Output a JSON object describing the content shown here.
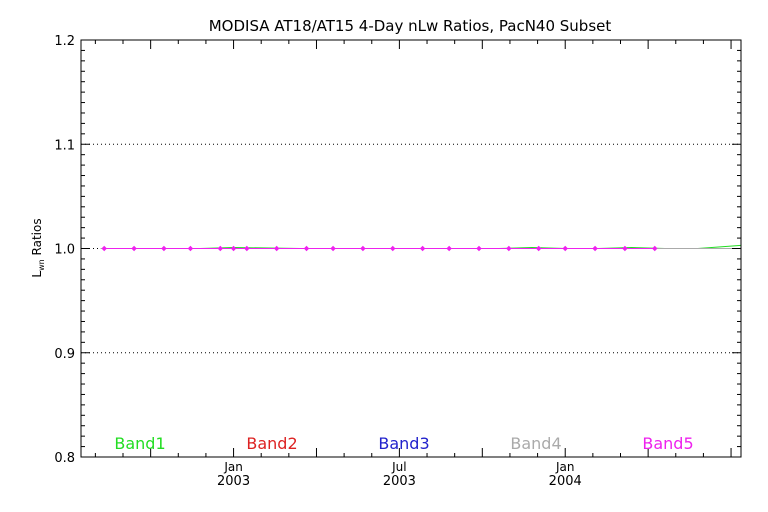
{
  "chart_data": {
    "type": "line",
    "title": "MODISA AT18/AT15 4-Day nLw Ratios, PacN40 Subset",
    "ylabel_main": "L",
    "ylabel_sub": "wn",
    "ylabel_rest": " Ratios",
    "ylim": [
      0.8,
      1.2
    ],
    "yticks": [
      {
        "value": 0.8,
        "label": "0.8"
      },
      {
        "value": 0.9,
        "label": "0.9"
      },
      {
        "value": 1.0,
        "label": "1.0"
      },
      {
        "value": 1.1,
        "label": "1.1"
      },
      {
        "value": 1.2,
        "label": "1.2"
      }
    ],
    "xlim": [
      2002.54,
      2004.53
    ],
    "xticks": [
      {
        "value": 2003.0,
        "month": "Jan",
        "year": "2003"
      },
      {
        "value": 2003.5,
        "month": "Jul",
        "year": "2003"
      },
      {
        "value": 2004.0,
        "month": "Jan",
        "year": "2004"
      }
    ],
    "grid_y": [
      0.9,
      1.0,
      1.1
    ],
    "legend_placement": "bottom",
    "series": [
      {
        "name": "Band1",
        "color": "#22dd22",
        "x": [
          2002.6,
          2002.9,
          2003.0,
          2003.2,
          2003.5,
          2003.8,
          2003.9,
          2004.0,
          2004.1,
          2004.2,
          2004.3,
          2004.4,
          2004.53
        ],
        "y": [
          1.0,
          1.0,
          1.001,
          1.0,
          1.0,
          1.0,
          1.001,
          1.0,
          1.0,
          1.001,
          1.0,
          1.0,
          1.003
        ]
      },
      {
        "name": "Band2",
        "color": "#dd2222",
        "x": [
          2002.6,
          2003.0,
          2003.5,
          2004.0,
          2004.53
        ],
        "y": [
          1.0,
          1.0,
          1.0,
          1.0,
          1.0
        ]
      },
      {
        "name": "Band3",
        "color": "#2222cc",
        "x": [
          2002.6,
          2003.0,
          2003.5,
          2004.0,
          2004.53
        ],
        "y": [
          1.0,
          1.0,
          1.0,
          1.0,
          1.0
        ]
      },
      {
        "name": "Band4",
        "color": "#aaaaaa",
        "x": [
          2002.6,
          2003.0,
          2003.5,
          2004.0,
          2004.53
        ],
        "y": [
          1.0,
          1.0,
          1.0,
          1.0,
          1.0
        ]
      },
      {
        "name": "Band5",
        "color": "#ee22ee",
        "x": [
          2002.61,
          2002.7,
          2002.79,
          2002.87,
          2002.96,
          2003.0,
          2003.04,
          2003.13,
          2003.22,
          2003.3,
          2003.39,
          2003.48,
          2003.57,
          2003.65,
          2003.74,
          2003.83,
          2003.92,
          2004.0,
          2004.09,
          2004.18,
          2004.27
        ],
        "y": [
          1.0,
          1.0,
          1.0,
          1.0,
          1.0,
          1.0,
          1.0,
          1.0,
          1.0,
          1.0,
          1.0,
          1.0,
          1.0,
          1.0,
          1.0,
          1.0,
          1.0,
          1.0,
          1.0,
          1.0,
          1.0
        ],
        "markers": true
      }
    ]
  }
}
